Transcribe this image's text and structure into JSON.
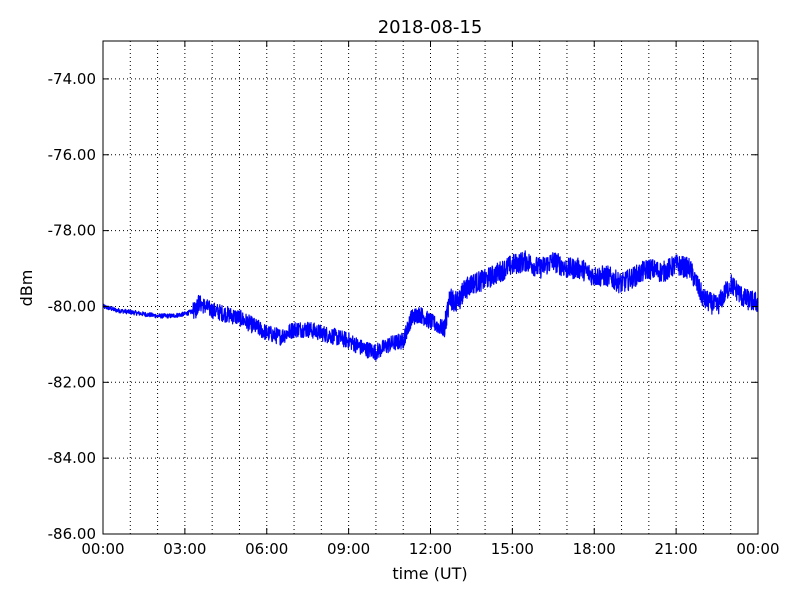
{
  "chart_data": {
    "type": "line",
    "title": "2018-08-15",
    "xlabel": "time (UT)",
    "ylabel": "dBm",
    "x_unit": "hours UT",
    "xlim": [
      0,
      24
    ],
    "ylim": [
      -86,
      -73
    ],
    "grid": true,
    "grid_style": "dotted",
    "legend": "none",
    "x_ticks": [
      {
        "value": 0,
        "label": "00:00"
      },
      {
        "value": 3,
        "label": "03:00"
      },
      {
        "value": 6,
        "label": "06:00"
      },
      {
        "value": 9,
        "label": "09:00"
      },
      {
        "value": 12,
        "label": "12:00"
      },
      {
        "value": 15,
        "label": "15:00"
      },
      {
        "value": 18,
        "label": "18:00"
      },
      {
        "value": 21,
        "label": "21:00"
      },
      {
        "value": 24,
        "label": "00:00"
      }
    ],
    "x_minor_gridlines": [
      1,
      2,
      4,
      5,
      7,
      8,
      10,
      11,
      13,
      14,
      16,
      17,
      19,
      20,
      22,
      23
    ],
    "y_ticks": [
      {
        "value": -74,
        "label": "-74.00"
      },
      {
        "value": -76,
        "label": "-76.00"
      },
      {
        "value": -78,
        "label": "-78.00"
      },
      {
        "value": -80,
        "label": "-80.00"
      },
      {
        "value": -82,
        "label": "-82.00"
      },
      {
        "value": -84,
        "label": "-84.00"
      },
      {
        "value": -86,
        "label": "-86.00"
      }
    ],
    "series": [
      {
        "color": "#0000ff",
        "x": [
          0,
          0.5,
          1,
          1.5,
          2,
          2.5,
          3,
          3.4,
          3.5,
          4,
          4.5,
          5,
          5.5,
          6,
          6.5,
          7,
          7.5,
          8,
          8.5,
          9,
          9.5,
          10,
          10.5,
          11,
          11.3,
          11.6,
          12,
          12.5,
          12.7,
          13,
          13.2,
          13.5,
          14,
          14.5,
          15,
          15.5,
          16,
          16.5,
          17,
          17.5,
          18,
          18.5,
          19,
          19.5,
          20,
          20.5,
          21,
          21.5,
          22,
          22.5,
          23,
          23.5,
          24
        ],
        "values": [
          -80.0,
          -80.1,
          -80.15,
          -80.2,
          -80.25,
          -80.25,
          -80.2,
          -80.1,
          -79.9,
          -80.1,
          -80.2,
          -80.3,
          -80.5,
          -80.7,
          -80.8,
          -80.6,
          -80.6,
          -80.7,
          -80.8,
          -80.9,
          -81.1,
          -81.2,
          -81.0,
          -80.9,
          -80.3,
          -80.2,
          -80.4,
          -80.6,
          -79.8,
          -79.9,
          -79.6,
          -79.4,
          -79.3,
          -79.1,
          -78.9,
          -78.8,
          -79.0,
          -78.8,
          -79.0,
          -79.0,
          -79.2,
          -79.2,
          -79.4,
          -79.2,
          -79.0,
          -79.1,
          -78.9,
          -79.0,
          -79.8,
          -80.0,
          -79.4,
          -79.8,
          -79.9
        ]
      }
    ]
  }
}
